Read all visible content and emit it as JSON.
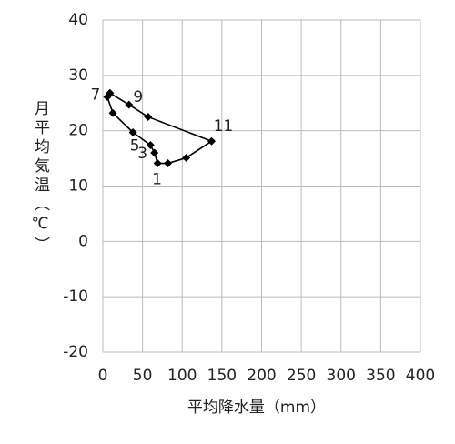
{
  "chart_data": {
    "type": "scatter",
    "x_label": "平均降水量（mm）",
    "y_label": "月平均気温（℃）",
    "x": [
      82,
      69,
      65,
      60,
      38,
      12.6,
      5.7,
      9,
      33,
      57,
      137,
      105
    ],
    "values": [
      14.1,
      14.1,
      16.0,
      17.4,
      19.7,
      23.2,
      26.1,
      26.8,
      24.7,
      22.5,
      18.1,
      15.1
    ],
    "point_labels": [
      "1",
      null,
      "3",
      null,
      "5",
      null,
      "7",
      null,
      "9",
      null,
      "11",
      null
    ],
    "closed": true,
    "color": "#000000",
    "xlim": [
      0,
      400
    ],
    "xticks": [
      0,
      50,
      100,
      150,
      200,
      250,
      300,
      350,
      400
    ],
    "ylim": [
      -20,
      40
    ],
    "yticks": [
      -20,
      -10,
      0,
      10,
      20,
      30,
      40
    ],
    "grid": true
  }
}
